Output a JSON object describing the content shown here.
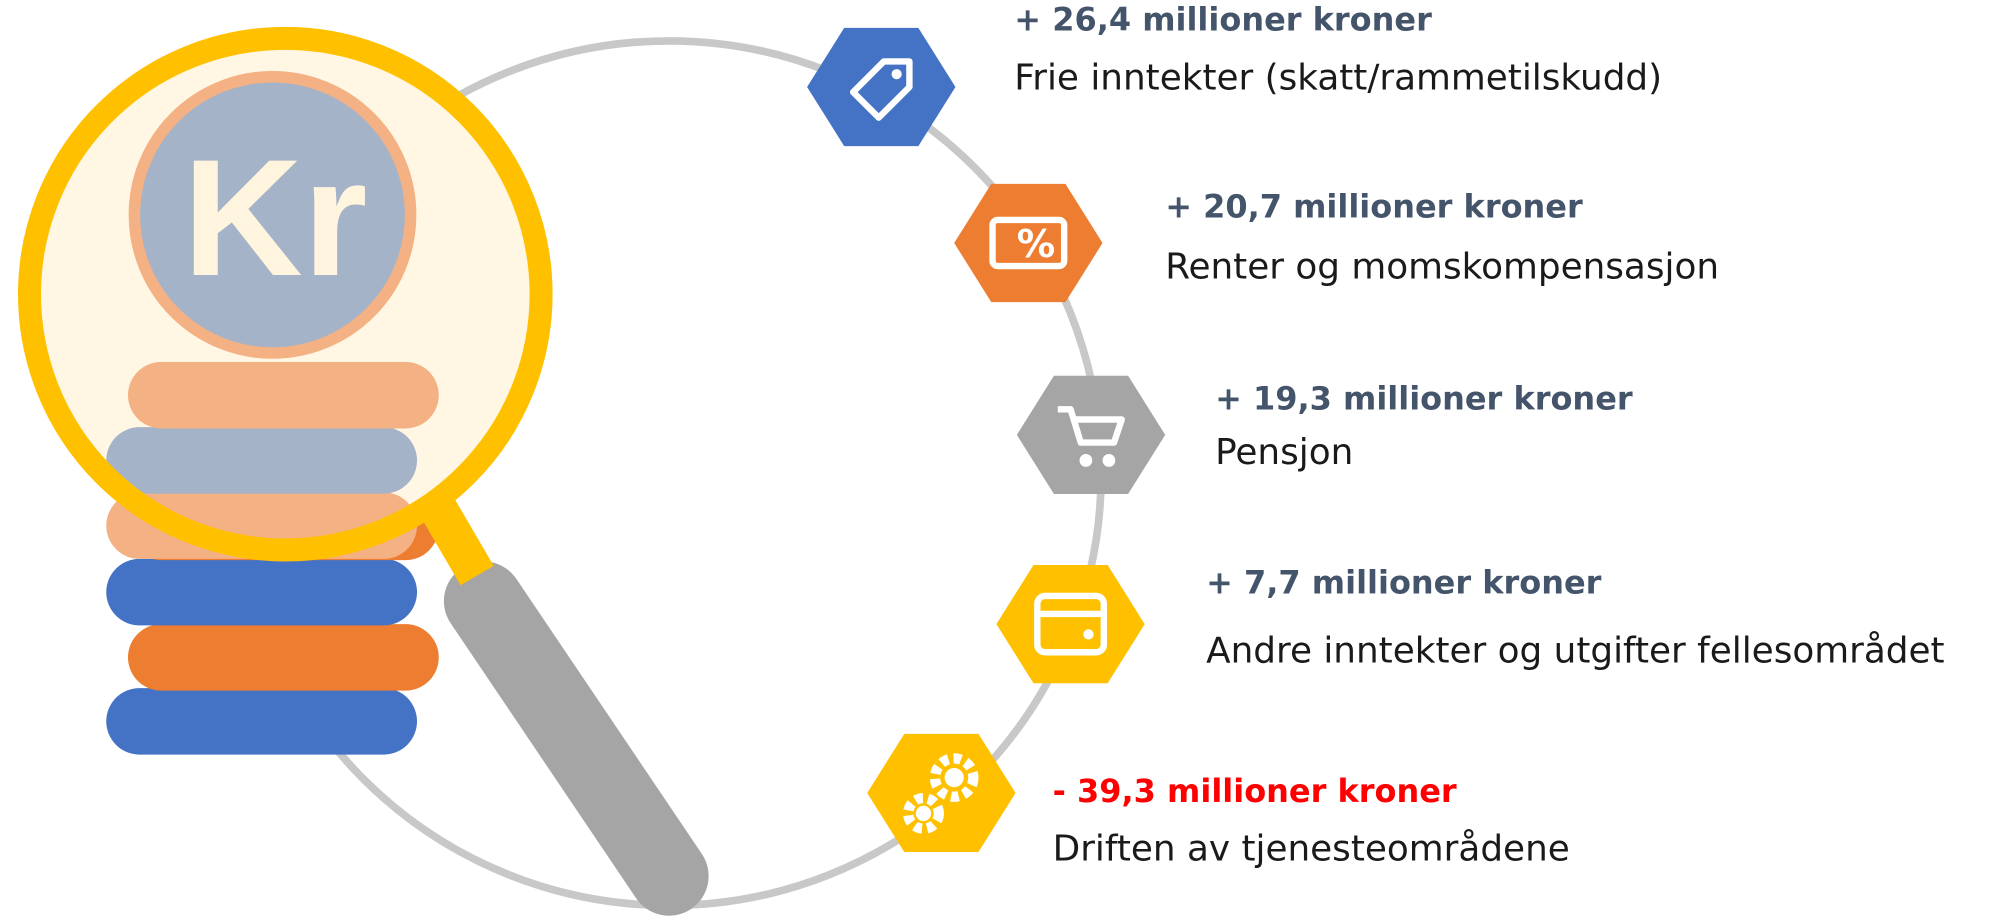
{
  "coin_label": "Kr",
  "items": [
    {
      "amount": "+ 26,4 millioner kroner",
      "label": "Frie inntekter (skatt/rammetilskudd)"
    },
    {
      "amount": "+ 20,7 millioner kroner",
      "label": "Renter og momskompensasjon"
    },
    {
      "amount": "+ 19,3 millioner kroner",
      "label": "Pensjon"
    },
    {
      "amount": "+ 7,7 millioner kroner",
      "label": "Andre inntekter og utgifter fellesområdet"
    },
    {
      "amount": "- 39,3 millioner kroner",
      "label": "Driften av tjenesteområdene"
    }
  ]
}
